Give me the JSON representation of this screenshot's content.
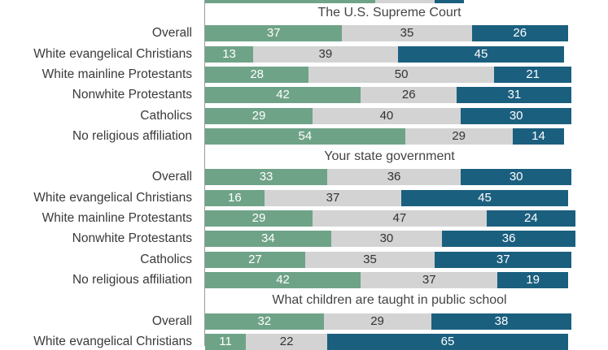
{
  "chart_data": {
    "type": "bar",
    "orientation": "horizontal-stacked-100",
    "colors": [
      "#6fa388",
      "#d3d3d3",
      "#1b5f7f"
    ],
    "label_colors": [
      "#ffffff",
      "#333333",
      "#ffffff"
    ],
    "top_partial_row": [
      46,
      16,
      8
    ],
    "groups": [
      {
        "title": "The U.S. Supreme Court",
        "rows": [
          {
            "label": "Overall",
            "values": [
              37,
              35,
              26
            ]
          },
          {
            "label": "White evangelical Christians",
            "values": [
              13,
              39,
              45
            ]
          },
          {
            "label": "White mainline Protestants",
            "values": [
              28,
              50,
              21
            ]
          },
          {
            "label": "Nonwhite Protestants",
            "values": [
              42,
              26,
              31
            ]
          },
          {
            "label": "Catholics",
            "values": [
              29,
              40,
              30
            ]
          },
          {
            "label": "No religious affiliation",
            "values": [
              54,
              29,
              14
            ]
          }
        ]
      },
      {
        "title": "Your state government",
        "rows": [
          {
            "label": "Overall",
            "values": [
              33,
              36,
              30
            ]
          },
          {
            "label": "White evangelical Christians",
            "values": [
              16,
              37,
              45
            ]
          },
          {
            "label": "White mainline Protestants",
            "values": [
              29,
              47,
              24
            ]
          },
          {
            "label": "Nonwhite Protestants",
            "values": [
              34,
              30,
              36
            ]
          },
          {
            "label": "Catholics",
            "values": [
              27,
              35,
              37
            ]
          },
          {
            "label": "No religious affiliation",
            "values": [
              42,
              37,
              19
            ]
          }
        ]
      },
      {
        "title": "What children are taught in public school",
        "rows": [
          {
            "label": "Overall",
            "values": [
              32,
              29,
              38
            ]
          },
          {
            "label": "White evangelical Christians",
            "values": [
              11,
              22,
              65
            ]
          }
        ]
      }
    ]
  }
}
